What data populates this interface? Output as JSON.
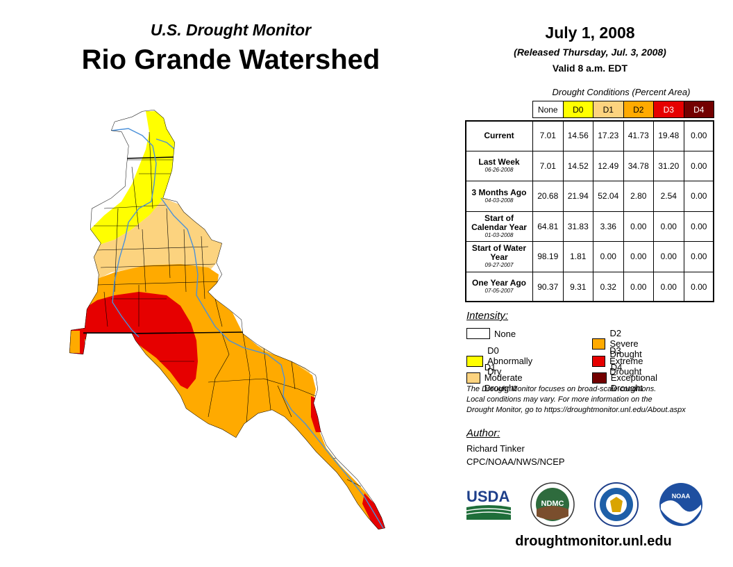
{
  "header": {
    "subtitle": "U.S. Drought Monitor",
    "title": "Rio Grande Watershed",
    "date": "July 1, 2008",
    "released": "(Released Thursday, Jul. 3, 2008)",
    "valid": "Valid 8 a.m. EDT"
  },
  "table": {
    "caption": "Drought Conditions (Percent Area)",
    "columns": [
      {
        "label": "None",
        "bg": "#ffffff",
        "fg": "#000000"
      },
      {
        "label": "D0",
        "bg": "#ffff00",
        "fg": "#000000"
      },
      {
        "label": "D1",
        "bg": "#fcd37f",
        "fg": "#000000"
      },
      {
        "label": "D2",
        "bg": "#ffaa00",
        "fg": "#000000"
      },
      {
        "label": "D3",
        "bg": "#e60000",
        "fg": "#ffffff"
      },
      {
        "label": "D4",
        "bg": "#730000",
        "fg": "#ffffff"
      }
    ],
    "rows": [
      {
        "label": "Current",
        "date": "",
        "values": [
          "7.01",
          "14.56",
          "17.23",
          "41.73",
          "19.48",
          "0.00"
        ]
      },
      {
        "label": "Last Week",
        "date": "06-26-2008",
        "values": [
          "7.01",
          "14.52",
          "12.49",
          "34.78",
          "31.20",
          "0.00"
        ]
      },
      {
        "label": "3 Months Ago",
        "date": "04-03-2008",
        "values": [
          "20.68",
          "21.94",
          "52.04",
          "2.80",
          "2.54",
          "0.00"
        ]
      },
      {
        "label": "Start of Calendar Year",
        "date": "01-03-2008",
        "values": [
          "64.81",
          "31.83",
          "3.36",
          "0.00",
          "0.00",
          "0.00"
        ]
      },
      {
        "label": "Start of Water Year",
        "date": "09-27-2007",
        "values": [
          "98.19",
          "1.81",
          "0.00",
          "0.00",
          "0.00",
          "0.00"
        ]
      },
      {
        "label": "One Year Ago",
        "date": "07-05-2007",
        "values": [
          "90.37",
          "9.31",
          "0.32",
          "0.00",
          "0.00",
          "0.00"
        ]
      }
    ]
  },
  "legend": {
    "heading": "Intensity:",
    "items": [
      {
        "label": "None",
        "color": "#ffffff"
      },
      {
        "label": "D0 Abnormally Dry",
        "color": "#ffff00"
      },
      {
        "label": "D1 Moderate Drought",
        "color": "#fcd37f"
      },
      {
        "label": "D2 Severe Drought",
        "color": "#ffaa00"
      },
      {
        "label": "D3 Extreme Drought",
        "color": "#e60000"
      },
      {
        "label": "D4 Exceptional Drought",
        "color": "#730000"
      }
    ]
  },
  "disclaimer": {
    "line1": "The Drought Monitor focuses on broad-scale conditions.",
    "line2": "Local conditions may vary. For more information on the",
    "line3": "Drought Monitor, go to https://droughtmonitor.unl.edu/About.aspx"
  },
  "author": {
    "heading": "Author:",
    "name": "Richard Tinker",
    "org": "CPC/NOAA/NWS/NCEP"
  },
  "logos": {
    "usda": "USDA",
    "ndmc": "NDMC",
    "noaa": "NOAA"
  },
  "website": "droughtmonitor.unl.edu",
  "colors": {
    "river": "#4a90d9",
    "boundary": "#000000"
  }
}
